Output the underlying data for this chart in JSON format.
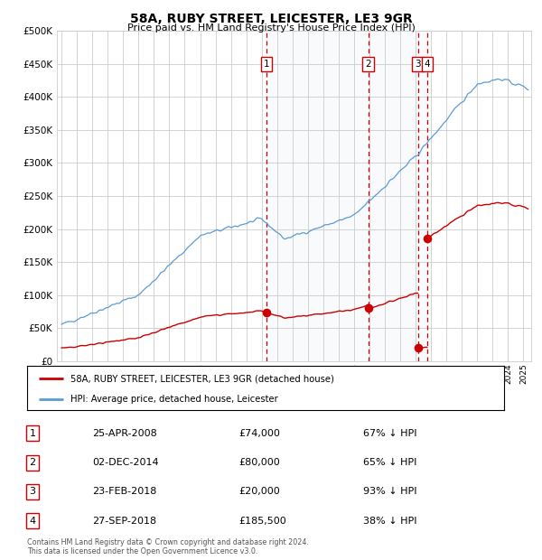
{
  "title": "58A, RUBY STREET, LEICESTER, LE3 9GR",
  "subtitle": "Price paid vs. HM Land Registry's House Price Index (HPI)",
  "legend_property": "58A, RUBY STREET, LEICESTER, LE3 9GR (detached house)",
  "legend_hpi": "HPI: Average price, detached house, Leicester",
  "footer": "Contains HM Land Registry data © Crown copyright and database right 2024.\nThis data is licensed under the Open Government Licence v3.0.",
  "ylim": [
    0,
    500000
  ],
  "yticks": [
    0,
    50000,
    100000,
    150000,
    200000,
    250000,
    300000,
    350000,
    400000,
    450000,
    500000
  ],
  "ytick_labels": [
    "£0",
    "£50K",
    "£100K",
    "£150K",
    "£200K",
    "£250K",
    "£300K",
    "£350K",
    "£400K",
    "£450K",
    "£500K"
  ],
  "xlim_start": 1994.7,
  "xlim_end": 2025.5,
  "transactions": [
    {
      "num": 1,
      "date": "25-APR-2008",
      "price": 74000,
      "year": 2008.32
    },
    {
      "num": 2,
      "date": "02-DEC-2014",
      "price": 80000,
      "year": 2014.92
    },
    {
      "num": 3,
      "date": "23-FEB-2018",
      "price": 20000,
      "year": 2018.15
    },
    {
      "num": 4,
      "date": "27-SEP-2018",
      "price": 185500,
      "year": 2018.75
    }
  ],
  "hpi_color": "#5b9bd5",
  "property_color": "#cc0000",
  "dashed_color": "#cc0000",
  "shaded_color": "#dce6f1",
  "background_color": "#ffffff",
  "grid_color": "#cccccc",
  "table_rows": [
    [
      "1",
      "25-APR-2008",
      "£74,000",
      "67% ↓ HPI"
    ],
    [
      "2",
      "02-DEC-2014",
      "£80,000",
      "65% ↓ HPI"
    ],
    [
      "3",
      "23-FEB-2018",
      "£20,000",
      "93% ↓ HPI"
    ],
    [
      "4",
      "27-SEP-2018",
      "£185,500",
      "38% ↓ HPI"
    ]
  ]
}
